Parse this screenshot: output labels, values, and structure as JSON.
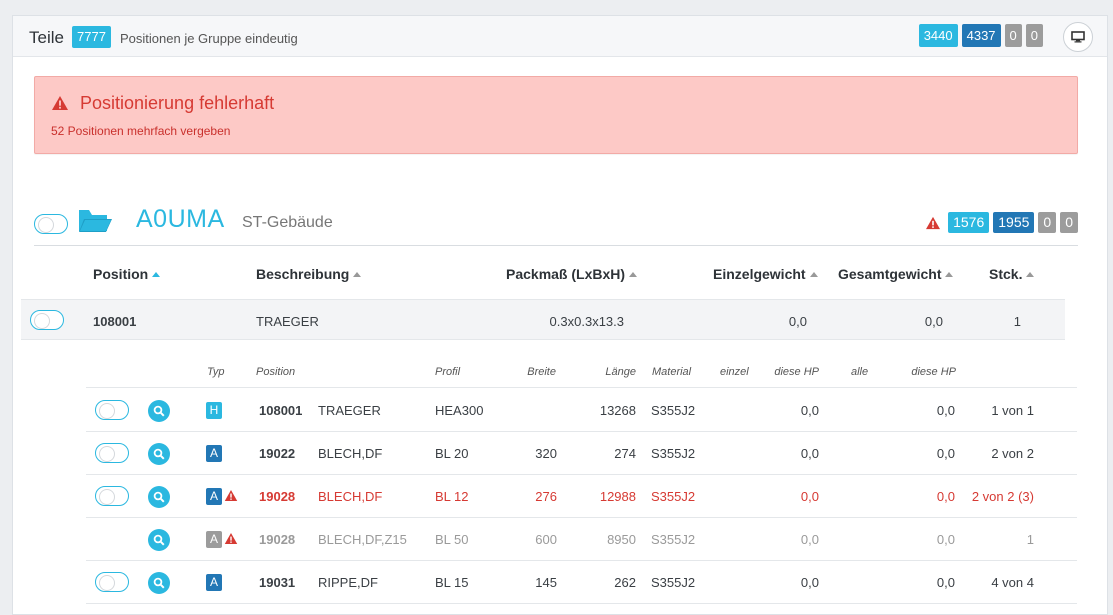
{
  "header": {
    "title": "Teile",
    "count": "7777",
    "subtitle": "Positionen je Gruppe eindeutig",
    "badges": [
      "3440",
      "4337",
      "0",
      "0"
    ],
    "monitor_icon": "monitor-icon"
  },
  "alert": {
    "title": "Positionierung fehlerhaft",
    "text": "52 Positionen mehrfach vergeben",
    "icon": "warning-icon"
  },
  "group": {
    "code": "A0UMA",
    "name": "ST-Gebäude",
    "badges": [
      "1576",
      "1955",
      "0",
      "0"
    ],
    "folder_icon": "folder-open-icon"
  },
  "columns": {
    "position": "Position",
    "beschreibung": "Beschreibung",
    "packmass": "Packmaß (LxBxH)",
    "einzelgewicht": "Einzelgewicht",
    "gesamtgewicht": "Gesamtgewicht",
    "stck": "Stck."
  },
  "summary": {
    "position": "108001",
    "beschreibung": "TRAEGER",
    "packmass": "0.3x0.3x13.3",
    "einzelgewicht": "0,0",
    "gesamtgewicht": "0,0",
    "stck": "1"
  },
  "subheaders": {
    "typ": "Typ",
    "position": "Position",
    "profil": "Profil",
    "breite": "Breite",
    "laenge": "Länge",
    "material": "Material",
    "einzel": "einzel",
    "diese_hp": "diese HP",
    "alle": "alle",
    "diese_hp2": "diese HP"
  },
  "rows": [
    {
      "typ": "H",
      "position": "108001",
      "name": "TRAEGER",
      "profil": "HEA300",
      "breite": "",
      "laenge": "13268",
      "material": "S355J2",
      "einzel": "0,0",
      "alle": "0,0",
      "stck": "1 von 1"
    },
    {
      "typ": "A",
      "position": "19022",
      "name": "BLECH,DF",
      "profil": "BL 20",
      "breite": "320",
      "laenge": "274",
      "material": "S355J2",
      "einzel": "0,0",
      "alle": "0,0",
      "stck": "2 von 2"
    },
    {
      "typ": "A",
      "position": "19028",
      "name": "BLECH,DF",
      "profil": "BL 12",
      "breite": "276",
      "laenge": "12988",
      "material": "S355J2",
      "einzel": "0,0",
      "alle": "0,0",
      "stck": "2 von 2 (3)"
    },
    {
      "typ": "A",
      "position": "19028",
      "name": "BLECH,DF,Z15",
      "profil": "BL 50",
      "breite": "600",
      "laenge": "8950",
      "material": "S355J2",
      "einzel": "0,0",
      "alle": "0,0",
      "stck": "1"
    },
    {
      "typ": "A",
      "position": "19031",
      "name": "RIPPE,DF",
      "profil": "BL 15",
      "breite": "145",
      "laenge": "262",
      "material": "S355J2",
      "einzel": "0,0",
      "alle": "0,0",
      "stck": "4 von 4"
    }
  ],
  "colors": {
    "cyan": "#2bb8e0",
    "blue": "#2277b5",
    "gray": "#9c9c9c",
    "red": "#d63a33",
    "alert_bg": "#fdc9c6"
  }
}
